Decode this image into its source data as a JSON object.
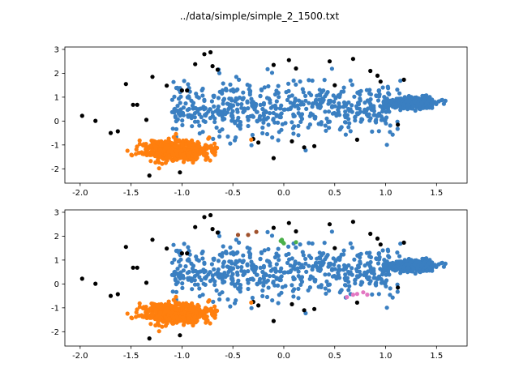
{
  "title": "../data/simple/simple_2_1500.txt",
  "colors": {
    "blue": "#3a7fc1",
    "orange": "#ff7f0e",
    "black": "#000000",
    "brown": "#a0522d",
    "green": "#4bb04b",
    "pink": "#e377c2"
  },
  "chart_data": [
    {
      "type": "scatter",
      "title": "",
      "xlabel": "",
      "ylabel": "",
      "xlim": [
        -2.15,
        1.8
      ],
      "ylim": [
        -2.6,
        3.1
      ],
      "xticks": [
        -2.0,
        -1.5,
        -1.0,
        -0.5,
        0.0,
        0.5,
        1.0,
        1.5
      ],
      "yticks": [
        -2,
        -1,
        0,
        1,
        2,
        3
      ],
      "xtick_labels": [
        "-2.0",
        "-1.5",
        "-1.0",
        "-0.5",
        "0.0",
        "0.5",
        "1.0",
        "1.5"
      ],
      "ytick_labels": [
        "-2",
        "-1",
        "0",
        "1",
        "2",
        "3"
      ],
      "clusters": [
        {
          "color": "blue",
          "center": [
            0.0,
            0.55
          ],
          "spread": [
            0.55,
            0.6
          ],
          "count": 550,
          "shape": "wide"
        },
        {
          "color": "blue",
          "center": [
            1.25,
            0.75
          ],
          "spread": [
            0.12,
            0.12
          ],
          "count": 380,
          "shape": "tight"
        },
        {
          "color": "orange",
          "center": [
            -1.05,
            -1.25
          ],
          "spread": [
            0.17,
            0.22
          ],
          "count": 520,
          "shape": "tight"
        }
      ],
      "points": [
        {
          "x": -1.98,
          "y": 0.22,
          "c": "black"
        },
        {
          "x": -1.85,
          "y": 0.01,
          "c": "black"
        },
        {
          "x": -1.7,
          "y": -0.5,
          "c": "black"
        },
        {
          "x": -1.63,
          "y": -0.43,
          "c": "black"
        },
        {
          "x": -1.55,
          "y": 1.55,
          "c": "black"
        },
        {
          "x": -1.48,
          "y": 0.68,
          "c": "black"
        },
        {
          "x": -1.44,
          "y": 0.68,
          "c": "black"
        },
        {
          "x": -1.35,
          "y": 0.05,
          "c": "black"
        },
        {
          "x": -1.29,
          "y": 1.85,
          "c": "black"
        },
        {
          "x": -1.15,
          "y": 1.48,
          "c": "black"
        },
        {
          "x": -1.0,
          "y": 1.28,
          "c": "black"
        },
        {
          "x": -0.95,
          "y": 1.28,
          "c": "black"
        },
        {
          "x": -0.87,
          "y": 2.38,
          "c": "black"
        },
        {
          "x": -0.78,
          "y": 2.8,
          "c": "black"
        },
        {
          "x": -0.72,
          "y": 2.88,
          "c": "black"
        },
        {
          "x": -0.7,
          "y": 2.3,
          "c": "black"
        },
        {
          "x": -0.65,
          "y": 2.15,
          "c": "black"
        },
        {
          "x": -0.3,
          "y": -0.75,
          "c": "black"
        },
        {
          "x": -0.25,
          "y": -0.9,
          "c": "black"
        },
        {
          "x": -0.1,
          "y": 2.35,
          "c": "black"
        },
        {
          "x": 0.05,
          "y": 2.55,
          "c": "black"
        },
        {
          "x": 0.12,
          "y": 2.2,
          "c": "black"
        },
        {
          "x": 0.08,
          "y": -0.85,
          "c": "black"
        },
        {
          "x": -0.1,
          "y": -1.55,
          "c": "black"
        },
        {
          "x": 0.2,
          "y": -1.1,
          "c": "black"
        },
        {
          "x": 0.3,
          "y": -1.05,
          "c": "black"
        },
        {
          "x": 0.45,
          "y": 2.5,
          "c": "black"
        },
        {
          "x": 0.5,
          "y": 1.5,
          "c": "black"
        },
        {
          "x": 0.68,
          "y": 2.6,
          "c": "black"
        },
        {
          "x": 0.72,
          "y": -0.78,
          "c": "black"
        },
        {
          "x": 0.85,
          "y": 2.1,
          "c": "black"
        },
        {
          "x": 0.92,
          "y": 1.9,
          "c": "black"
        },
        {
          "x": 0.95,
          "y": 1.65,
          "c": "black"
        },
        {
          "x": 1.12,
          "y": -0.15,
          "c": "black"
        },
        {
          "x": 1.18,
          "y": 1.73,
          "c": "black"
        },
        {
          "x": -1.02,
          "y": -2.15,
          "c": "black"
        },
        {
          "x": -1.32,
          "y": -2.28,
          "c": "black"
        },
        {
          "x": -0.32,
          "y": -0.78,
          "c": "orange"
        }
      ],
      "highlights": []
    },
    {
      "type": "scatter",
      "title": "",
      "xlabel": "",
      "ylabel": "",
      "xlim": [
        -2.15,
        1.8
      ],
      "ylim": [
        -2.6,
        3.1
      ],
      "xticks": [
        -2.0,
        -1.5,
        -1.0,
        -0.5,
        0.0,
        0.5,
        1.0,
        1.5
      ],
      "yticks": [
        -2,
        -1,
        0,
        1,
        2,
        3
      ],
      "xtick_labels": [
        "-2.0",
        "-1.5",
        "-1.0",
        "-0.5",
        "0.0",
        "0.5",
        "1.0",
        "1.5"
      ],
      "ytick_labels": [
        "-2",
        "-1",
        "0",
        "1",
        "2",
        "3"
      ],
      "clusters": [
        {
          "color": "blue",
          "center": [
            0.0,
            0.55
          ],
          "spread": [
            0.55,
            0.6
          ],
          "count": 550,
          "shape": "wide"
        },
        {
          "color": "blue",
          "center": [
            1.25,
            0.75
          ],
          "spread": [
            0.12,
            0.12
          ],
          "count": 380,
          "shape": "tight"
        },
        {
          "color": "orange",
          "center": [
            -1.05,
            -1.25
          ],
          "spread": [
            0.17,
            0.22
          ],
          "count": 520,
          "shape": "tight"
        }
      ],
      "points": [
        {
          "x": -1.98,
          "y": 0.22,
          "c": "black"
        },
        {
          "x": -1.85,
          "y": 0.01,
          "c": "black"
        },
        {
          "x": -1.7,
          "y": -0.5,
          "c": "black"
        },
        {
          "x": -1.63,
          "y": -0.43,
          "c": "black"
        },
        {
          "x": -1.55,
          "y": 1.55,
          "c": "black"
        },
        {
          "x": -1.48,
          "y": 0.68,
          "c": "black"
        },
        {
          "x": -1.44,
          "y": 0.68,
          "c": "black"
        },
        {
          "x": -1.35,
          "y": 0.05,
          "c": "black"
        },
        {
          "x": -1.29,
          "y": 1.85,
          "c": "black"
        },
        {
          "x": -1.15,
          "y": 1.48,
          "c": "black"
        },
        {
          "x": -1.0,
          "y": 1.28,
          "c": "black"
        },
        {
          "x": -0.95,
          "y": 1.28,
          "c": "black"
        },
        {
          "x": -0.87,
          "y": 2.38,
          "c": "black"
        },
        {
          "x": -0.78,
          "y": 2.8,
          "c": "black"
        },
        {
          "x": -0.72,
          "y": 2.88,
          "c": "black"
        },
        {
          "x": -0.7,
          "y": 2.3,
          "c": "black"
        },
        {
          "x": -0.65,
          "y": 2.15,
          "c": "black"
        },
        {
          "x": -0.3,
          "y": -0.75,
          "c": "black"
        },
        {
          "x": -0.25,
          "y": -0.9,
          "c": "black"
        },
        {
          "x": -0.1,
          "y": 2.35,
          "c": "black"
        },
        {
          "x": 0.05,
          "y": 2.55,
          "c": "black"
        },
        {
          "x": 0.12,
          "y": 2.2,
          "c": "black"
        },
        {
          "x": 0.08,
          "y": -0.85,
          "c": "black"
        },
        {
          "x": -0.1,
          "y": -1.55,
          "c": "black"
        },
        {
          "x": 0.2,
          "y": -1.1,
          "c": "black"
        },
        {
          "x": 0.3,
          "y": -1.05,
          "c": "black"
        },
        {
          "x": 0.45,
          "y": 2.5,
          "c": "black"
        },
        {
          "x": 0.5,
          "y": 1.5,
          "c": "black"
        },
        {
          "x": 0.68,
          "y": 2.6,
          "c": "black"
        },
        {
          "x": 0.72,
          "y": -0.78,
          "c": "black"
        },
        {
          "x": 0.85,
          "y": 2.1,
          "c": "black"
        },
        {
          "x": 0.92,
          "y": 1.9,
          "c": "black"
        },
        {
          "x": 0.95,
          "y": 1.65,
          "c": "black"
        },
        {
          "x": 1.12,
          "y": -0.15,
          "c": "black"
        },
        {
          "x": 1.18,
          "y": 1.73,
          "c": "black"
        },
        {
          "x": -1.02,
          "y": -2.15,
          "c": "black"
        },
        {
          "x": -1.32,
          "y": -2.28,
          "c": "black"
        },
        {
          "x": -0.32,
          "y": -0.78,
          "c": "orange"
        }
      ],
      "highlights": [
        {
          "x": -0.45,
          "y": 2.05,
          "c": "brown"
        },
        {
          "x": -0.35,
          "y": 2.05,
          "c": "brown"
        },
        {
          "x": -0.27,
          "y": 2.18,
          "c": "brown"
        },
        {
          "x": -0.02,
          "y": 1.85,
          "c": "green"
        },
        {
          "x": -0.01,
          "y": 1.75,
          "c": "green"
        },
        {
          "x": -0.03,
          "y": 1.8,
          "c": "green"
        },
        {
          "x": 0.0,
          "y": 1.7,
          "c": "green"
        },
        {
          "x": 0.12,
          "y": 1.75,
          "c": "green"
        },
        {
          "x": 0.62,
          "y": -0.55,
          "c": "pink"
        },
        {
          "x": 0.68,
          "y": -0.45,
          "c": "pink"
        },
        {
          "x": 0.72,
          "y": -0.42,
          "c": "pink"
        },
        {
          "x": 0.78,
          "y": -0.35,
          "c": "pink"
        },
        {
          "x": 0.82,
          "y": -0.45,
          "c": "pink"
        }
      ]
    }
  ]
}
